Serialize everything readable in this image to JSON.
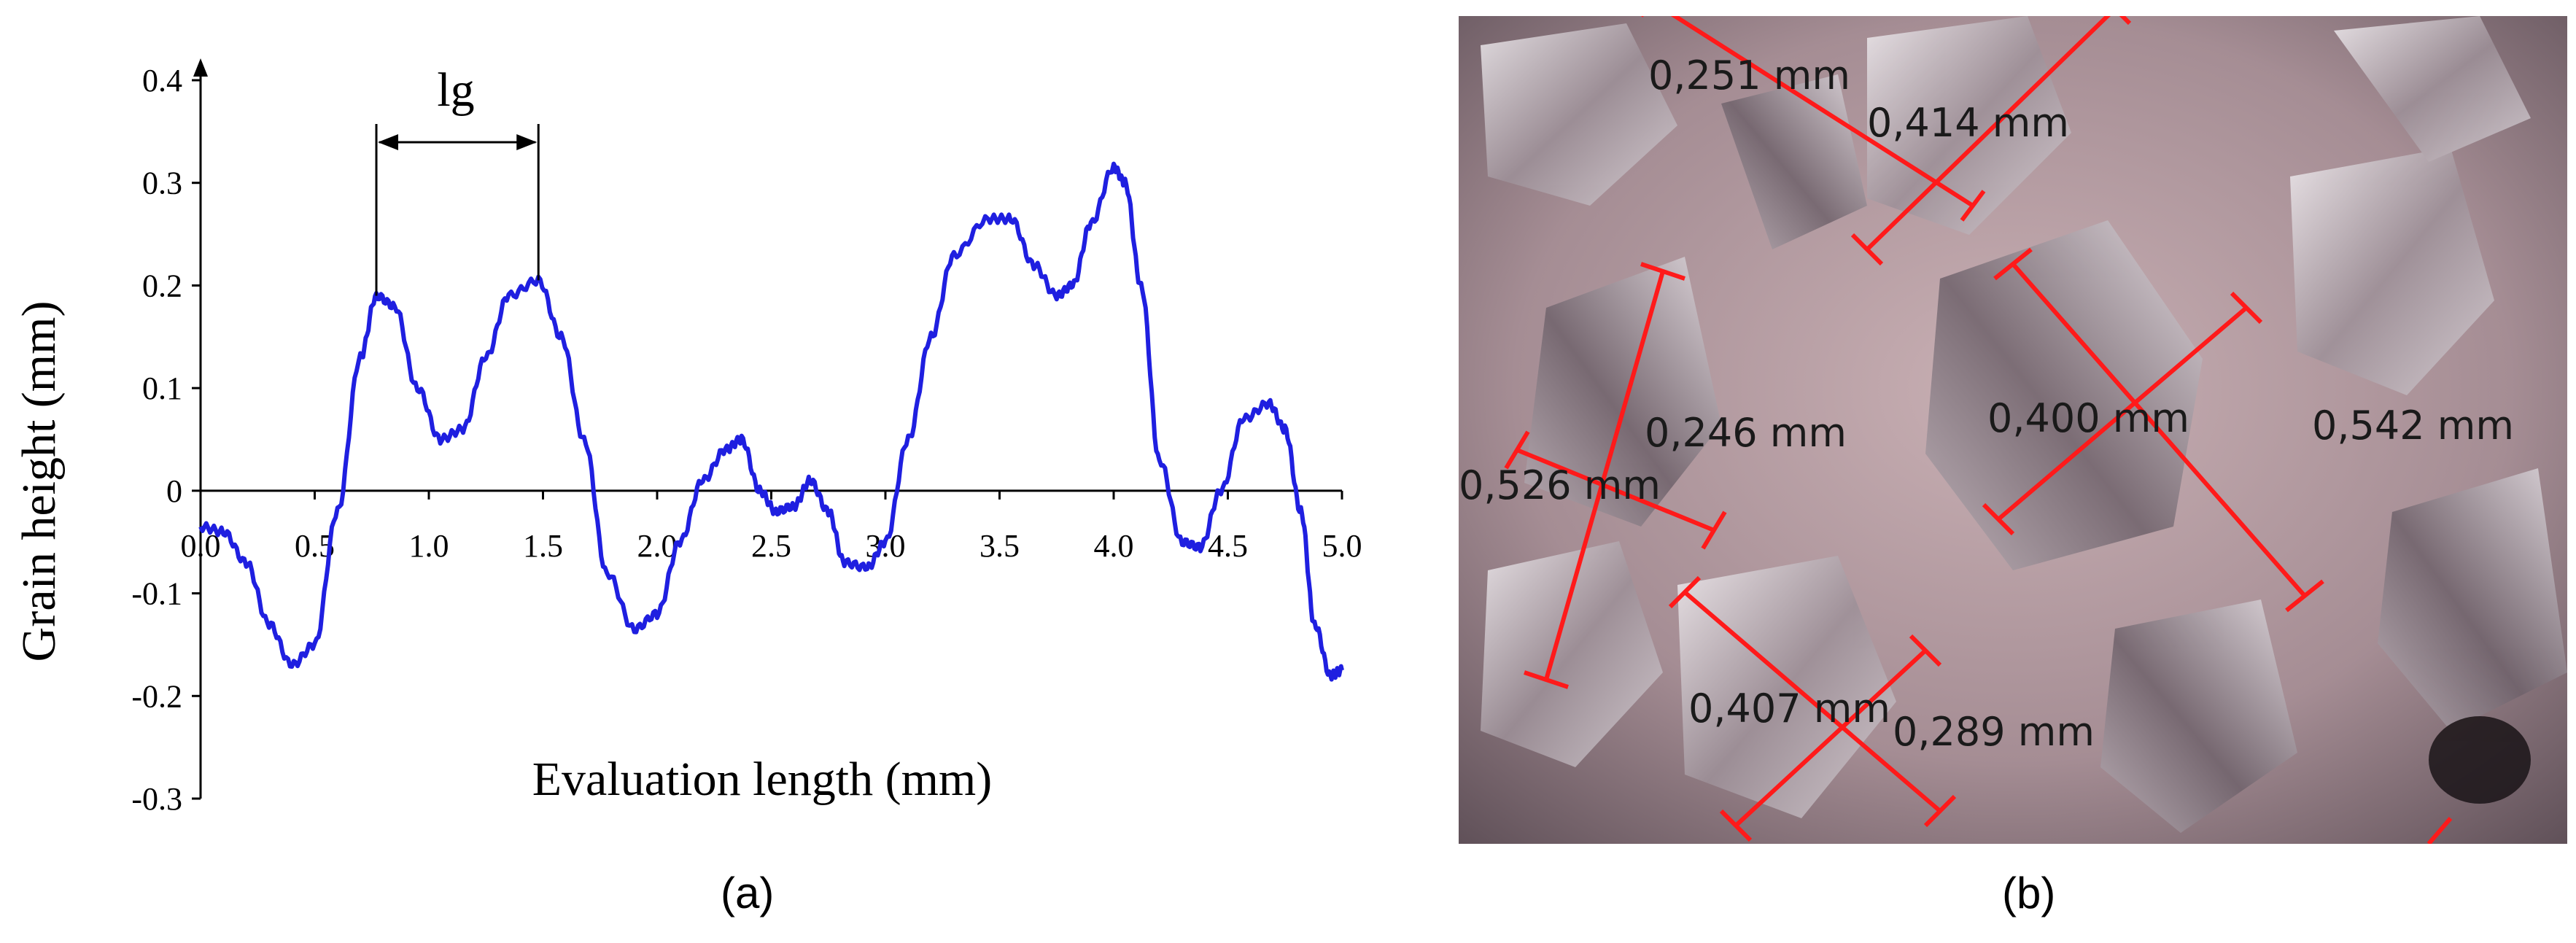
{
  "panel_labels": {
    "left": "(a)",
    "right": "(b)"
  },
  "chart_data": {
    "type": "line",
    "xlabel": "Evaluation length (mm)",
    "ylabel": "Grain height (mm)",
    "xlim": [
      0,
      5
    ],
    "ylim": [
      -0.3,
      0.4
    ],
    "x_ticks": [
      "0.0",
      "0.5",
      "1.0",
      "1.5",
      "2.0",
      "2.5",
      "3.0",
      "3.5",
      "4.0",
      "4.5",
      "5.0"
    ],
    "y_ticks": [
      "0.4",
      "0.3",
      "0.2",
      "0.1",
      "0",
      "-0.1",
      "-0.2",
      "-0.3"
    ],
    "line_color": "#1f1fe0",
    "annotation": {
      "text": "lg",
      "x_start": 0.77,
      "x_end": 1.48
    },
    "series": [
      {
        "x": [
          0.0,
          0.1,
          0.2,
          0.3,
          0.4,
          0.5,
          0.6,
          0.7,
          0.77,
          0.85,
          0.95,
          1.05,
          1.15,
          1.25,
          1.35,
          1.48,
          1.58,
          1.68,
          1.78,
          1.9,
          2.0,
          2.1,
          2.2,
          2.3,
          2.37,
          2.45,
          2.52,
          2.6,
          2.67,
          2.75,
          2.82,
          2.92,
          3.0,
          3.1,
          3.2,
          3.3,
          3.45,
          3.55,
          3.65,
          3.75,
          3.82,
          3.9,
          4.0,
          4.05,
          4.12,
          4.2,
          4.3,
          4.38,
          4.47,
          4.57,
          4.68,
          4.75,
          4.82,
          4.88,
          4.95,
          5.0
        ],
        "y": [
          -0.035,
          -0.04,
          -0.07,
          -0.13,
          -0.17,
          -0.15,
          -0.02,
          0.13,
          0.19,
          0.18,
          0.1,
          0.05,
          0.06,
          0.13,
          0.19,
          0.205,
          0.15,
          0.05,
          -0.08,
          -0.135,
          -0.12,
          -0.05,
          0.01,
          0.04,
          0.05,
          0.0,
          -0.02,
          -0.015,
          0.01,
          -0.02,
          -0.07,
          -0.075,
          -0.05,
          0.05,
          0.15,
          0.23,
          0.265,
          0.265,
          0.22,
          0.19,
          0.2,
          0.26,
          0.315,
          0.3,
          0.2,
          0.03,
          -0.05,
          -0.055,
          0.0,
          0.07,
          0.085,
          0.06,
          -0.02,
          -0.13,
          -0.18,
          -0.175
        ]
      }
    ]
  },
  "measurements": [
    {
      "text": "0,251 mm"
    },
    {
      "text": "0,414 mm"
    },
    {
      "text": "0,246 mm"
    },
    {
      "text": "0,400 mm"
    },
    {
      "text": "0,542 mm"
    },
    {
      "text": "0,526 mm"
    },
    {
      "text": "0,407 mm"
    },
    {
      "text": "0,289 mm"
    }
  ],
  "colors": {
    "measure_line": "#ff1a1a",
    "photo_bg": "#b8a0a8"
  }
}
